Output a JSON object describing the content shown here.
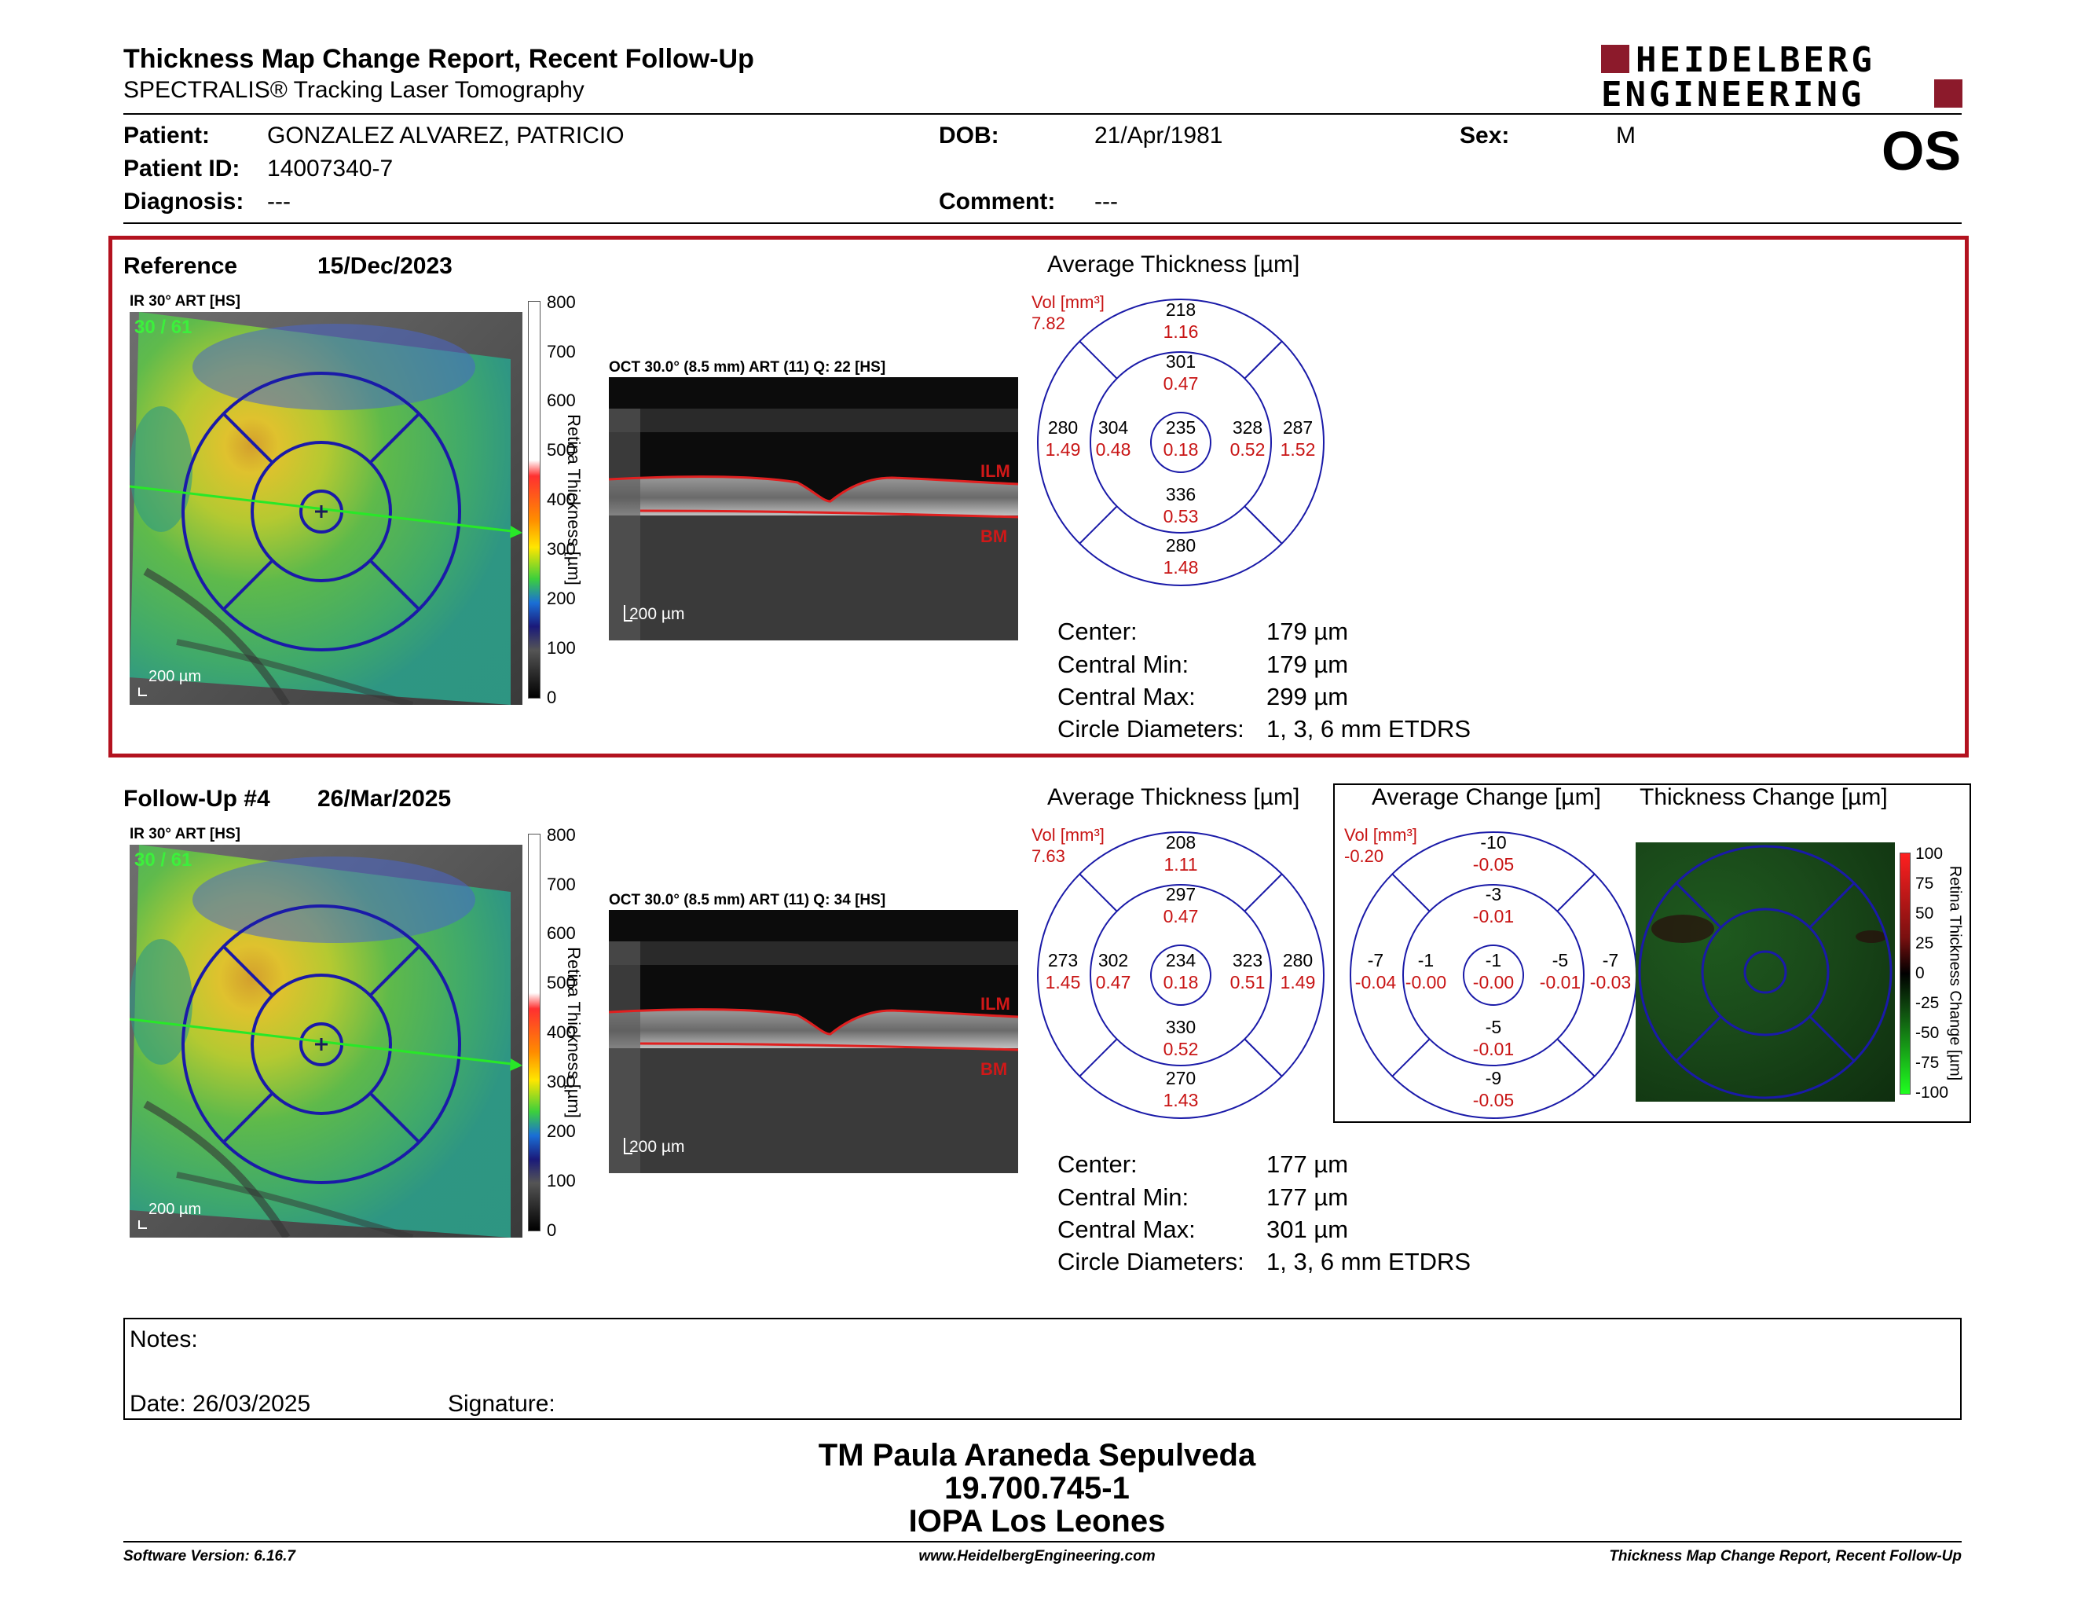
{
  "header": {
    "title": "Thickness Map Change Report, Recent Follow-Up",
    "subtitle": "SPECTRALIS® Tracking Laser Tomography",
    "logo_line1": "HEIDELBERG",
    "logo_line2": "ENGINEERING",
    "eye": "OS"
  },
  "patient": {
    "patient_label": "Patient:",
    "patient_value": "GONZALEZ ALVAREZ, PATRICIO",
    "id_label": "Patient ID:",
    "id_value": "14007340-7",
    "diag_label": "Diagnosis:",
    "diag_value": "---",
    "dob_label": "DOB:",
    "dob_value": "21/Apr/1981",
    "comment_label": "Comment:",
    "comment_value": "---",
    "sex_label": "Sex:",
    "sex_value": "M"
  },
  "reference": {
    "label": "Reference",
    "date": "15/Dec/2023",
    "ir_label": "IR 30° ART [HS]",
    "ir_counter": "30 / 61",
    "ir_scale": "200 µm",
    "oct_label": "OCT 30.0° (8.5 mm) ART (11) Q: 22 [HS]",
    "oct_scale": "200 µm",
    "avg_title": "Average Thickness [µm]",
    "vol_label": "Vol [mm³]",
    "vol_value": "7.82",
    "grid": {
      "outer_sup": [
        "218",
        "1.16"
      ],
      "inner_sup": [
        "301",
        "0.47"
      ],
      "outer_temp": [
        "280",
        "1.49"
      ],
      "inner_temp": [
        "304",
        "0.48"
      ],
      "center": [
        "235",
        "0.18"
      ],
      "inner_nas": [
        "328",
        "0.52"
      ],
      "outer_nas": [
        "287",
        "1.52"
      ],
      "inner_inf": [
        "336",
        "0.53"
      ],
      "outer_inf": [
        "280",
        "1.48"
      ]
    },
    "stats": [
      {
        "label": "Center:",
        "value": "179 µm"
      },
      {
        "label": "Central Min:",
        "value": "179 µm"
      },
      {
        "label": "Central Max:",
        "value": "299 µm"
      },
      {
        "label": "Circle Diameters:",
        "value": "1, 3, 6 mm ETDRS"
      }
    ]
  },
  "followup": {
    "label": "Follow-Up #4",
    "date": "26/Mar/2025",
    "ir_label": "IR 30° ART [HS]",
    "ir_counter": "30 / 61",
    "ir_scale": "200 µm",
    "oct_label": "OCT 30.0° (8.5 mm) ART (11) Q: 34 [HS]",
    "oct_scale": "200 µm",
    "avg_title": "Average Thickness [µm]",
    "vol_label": "Vol [mm³]",
    "vol_value": "7.63",
    "grid": {
      "outer_sup": [
        "208",
        "1.11"
      ],
      "inner_sup": [
        "297",
        "0.47"
      ],
      "outer_temp": [
        "273",
        "1.45"
      ],
      "inner_temp": [
        "302",
        "0.47"
      ],
      "center": [
        "234",
        "0.18"
      ],
      "inner_nas": [
        "323",
        "0.51"
      ],
      "outer_nas": [
        "280",
        "1.49"
      ],
      "inner_inf": [
        "330",
        "0.52"
      ],
      "outer_inf": [
        "270",
        "1.43"
      ]
    },
    "stats": [
      {
        "label": "Center:",
        "value": "177 µm"
      },
      {
        "label": "Central Min:",
        "value": "177 µm"
      },
      {
        "label": "Central Max:",
        "value": "301 µm"
      },
      {
        "label": "Circle Diameters:",
        "value": "1, 3, 6 mm ETDRS"
      }
    ]
  },
  "change": {
    "avg_title": "Average Change [µm]",
    "map_title": "Thickness Change [µm]",
    "vol_label": "Vol [mm³]",
    "vol_value": "-0.20",
    "grid": {
      "outer_sup": [
        "-10",
        "-0.05"
      ],
      "inner_sup": [
        "-3",
        "-0.01"
      ],
      "outer_temp": [
        "-7",
        "-0.04"
      ],
      "inner_temp": [
        "-1",
        "-0.00"
      ],
      "center": [
        "-1",
        "-0.00"
      ],
      "inner_nas": [
        "-5",
        "-0.01"
      ],
      "outer_nas": [
        "-7",
        "-0.03"
      ],
      "inner_inf": [
        "-5",
        "-0.01"
      ],
      "outer_inf": [
        "-9",
        "-0.05"
      ]
    },
    "scale_ticks": [
      "100",
      "75",
      "50",
      "25",
      "0",
      "-25",
      "-50",
      "-75",
      "-100"
    ],
    "scale_title": "Retina Thickness Change [µm]"
  },
  "thickness_scale": {
    "ticks": [
      "800",
      "700",
      "600",
      "500",
      "400",
      "300",
      "200",
      "100",
      "0"
    ],
    "title": "Retina Thickness [µm]"
  },
  "oct_labels": {
    "ilm": "ILM",
    "bm": "BM"
  },
  "notes": {
    "notes_label": "Notes:",
    "date_label": "Date: 26/03/2025",
    "signature_label": "Signature:"
  },
  "signoff": {
    "name": "TM Paula Araneda Sepulveda",
    "id": "19.700.745-1",
    "institution": "IOPA Los Leones"
  },
  "footer": {
    "version": "Software Version: 6.16.7",
    "url": "www.HeidelbergEngineering.com",
    "report": "Thickness Map Change Report, Recent Follow-Up"
  },
  "colors": {
    "accent_red": "#b3121f",
    "grid_blue": "#1a1aa8",
    "value_red": "#c81414",
    "logo_red": "#8c1a2b"
  }
}
